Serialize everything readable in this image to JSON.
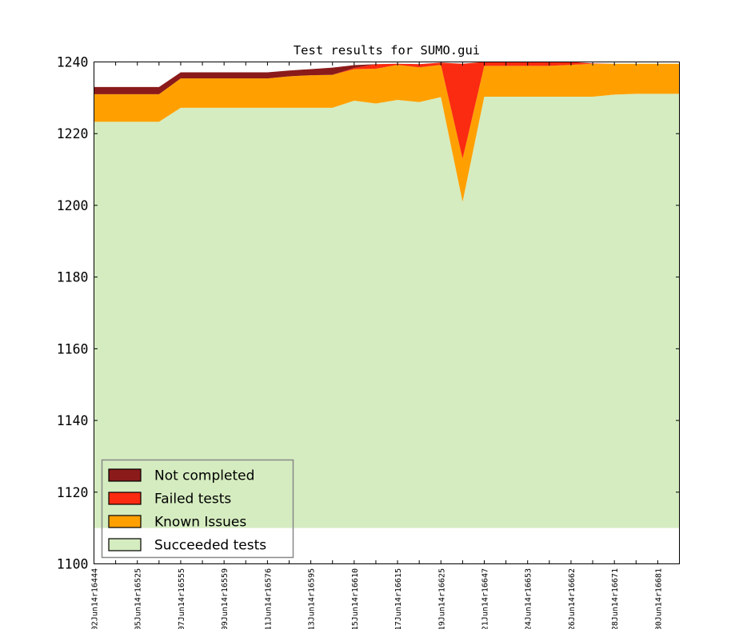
{
  "title": "Test results for SUMO.gui",
  "chart_data": {
    "type": "area",
    "stacked": true,
    "title": "Test results for SUMO.gui",
    "xlabel": "",
    "ylabel": "",
    "ylim": [
      1100,
      1240
    ],
    "yticks": [
      1100,
      1120,
      1140,
      1160,
      1180,
      1200,
      1220,
      1240
    ],
    "grid": false,
    "legend_position": "lower-left",
    "baseline": 1110,
    "x_points": 28,
    "labels_every": 2,
    "x_tick_labels": [
      "02Jun14r16444",
      "05Jun14r16525",
      "07Jun14r16555",
      "09Jun14r16559",
      "11Jun14r16576",
      "13Jun14r16595",
      "15Jun14r16610",
      "17Jun14r16615",
      "19Jun14r16625",
      "21Jun14r16647",
      "24Jun14r16653",
      "26Jun14r16662",
      "28Jun14r16671",
      "30Jun14r16681"
    ],
    "series": [
      {
        "name": "Succeeded tests",
        "key": "succeeded",
        "color": "#D5ECC0"
      },
      {
        "name": "Known Issues",
        "key": "known_issues",
        "color": "#FFA000"
      },
      {
        "name": "Failed tests",
        "key": "failed",
        "color": "#FA2B10"
      },
      {
        "name": "Not completed",
        "key": "not_completed",
        "color": "#8B1A1A"
      }
    ],
    "cumulative_tops": {
      "succeeded": [
        1223.3,
        1223.3,
        1223.3,
        1223.3,
        1227.2,
        1227.2,
        1227.2,
        1227.2,
        1227.2,
        1227.2,
        1227.2,
        1227.2,
        1229.2,
        1228.4,
        1229.4,
        1228.8,
        1230.2,
        1201,
        1230.3,
        1230.3,
        1230.3,
        1230.3,
        1230.3,
        1230.3,
        1230.9,
        1231.1,
        1231.1,
        1231.1
      ],
      "known_issues": [
        1231,
        1231,
        1231,
        1231,
        1235.4,
        1235.4,
        1235.4,
        1235.4,
        1235.4,
        1236,
        1236.3,
        1236.4,
        1238,
        1238.1,
        1239.2,
        1238.5,
        1239.2,
        1213,
        1238.9,
        1238.9,
        1238.9,
        1238.9,
        1239.2,
        1239.5,
        1239.5,
        1239.5,
        1239.5,
        1239.5
      ],
      "failed": [
        1231,
        1231,
        1231,
        1231,
        1235.4,
        1235.4,
        1235.4,
        1235.4,
        1235.4,
        1236,
        1236.3,
        1236.4,
        1238.3,
        1239.4,
        1239.5,
        1239.4,
        1239.8,
        1239.5,
        1240,
        1240,
        1240,
        1240,
        1240,
        1239.6,
        1239.5,
        1239.5,
        1239.5,
        1239.5
      ],
      "not_completed": [
        1233,
        1233,
        1233,
        1233,
        1237.1,
        1237.1,
        1237.1,
        1237.1,
        1237.1,
        1237.6,
        1238,
        1238.4,
        1239.1,
        1239.4,
        1239.5,
        1239.4,
        1239.8,
        1239.5,
        1240,
        1240,
        1240,
        1240,
        1240,
        1239.6,
        1239.5,
        1239.5,
        1239.5,
        1239.5
      ]
    }
  },
  "legend": {
    "entries": [
      {
        "label": "Not completed",
        "color": "#8B1A1A"
      },
      {
        "label": "Failed tests",
        "color": "#FA2B10"
      },
      {
        "label": "Known Issues",
        "color": "#FFA000"
      },
      {
        "label": "Succeeded tests",
        "color": "#D5ECC0"
      }
    ]
  },
  "colors": {
    "frame": "#000000",
    "legend_border": "#888888",
    "swatch_border": "#000000",
    "background": "#ffffff"
  }
}
